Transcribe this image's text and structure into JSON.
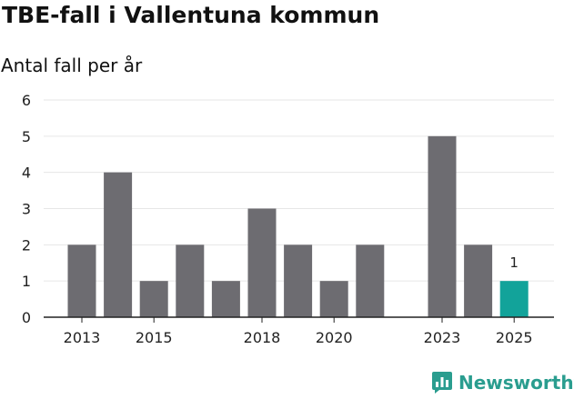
{
  "header": {
    "title": "TBE-fall i Vallentuna kommun",
    "subtitle": "Antal fall per år"
  },
  "brand": {
    "name": "Newsworthy",
    "color": "#2a9d8f",
    "icon": "bar-chart-logo-icon"
  },
  "colors": {
    "bar": "#6d6c71",
    "highlight": "#12a39a",
    "grid": "#e6e6e6",
    "axis": "#222222",
    "text": "#222222"
  },
  "chart_data": {
    "type": "bar",
    "x": [
      2013,
      2014,
      2015,
      2016,
      2017,
      2018,
      2019,
      2020,
      2021,
      2022,
      2023,
      2024,
      2025
    ],
    "values": [
      2,
      4,
      1,
      2,
      1,
      3,
      2,
      1,
      2,
      0,
      5,
      2,
      1
    ],
    "highlight_index": 12,
    "data_labels": [
      {
        "index": 12,
        "text": "1"
      }
    ],
    "xticks": [
      "2013",
      "2015",
      "2018",
      "2020",
      "2023",
      "2025"
    ],
    "yticks": [
      "0",
      "1",
      "2",
      "3",
      "4",
      "5",
      "6"
    ],
    "ylim": [
      0,
      6
    ],
    "grid": true
  }
}
